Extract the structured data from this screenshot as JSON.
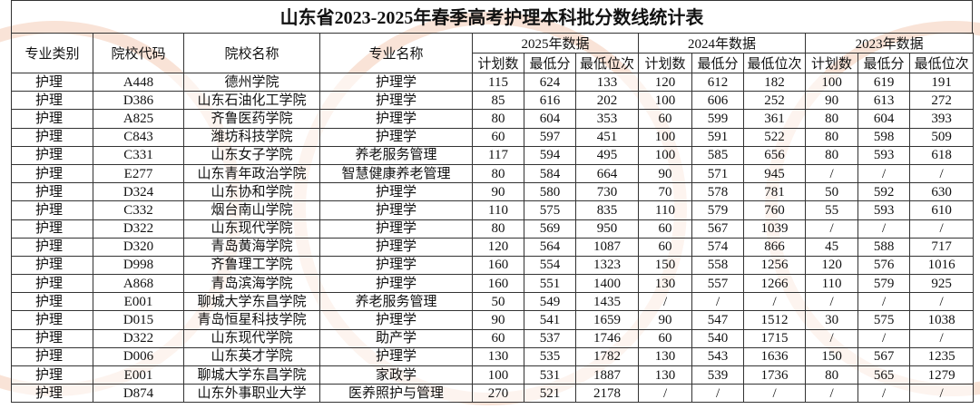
{
  "title": "山东省2023-2025年春季高考护理本科批分数线统计表",
  "table": {
    "columns": [
      "专业类别",
      "院校代码",
      "院校名称",
      "专业名称"
    ],
    "years": [
      {
        "label": "2025年数据",
        "columns": [
          "计划数",
          "最低分",
          "最低位次"
        ]
      },
      {
        "label": "2024年数据",
        "columns": [
          "计划数",
          "最低分",
          "最低位次"
        ]
      },
      {
        "label": "2023年数据",
        "columns": [
          "计划数",
          "最低分",
          "最低位次"
        ]
      }
    ],
    "rows": [
      [
        "护理",
        "A448",
        "德州学院",
        "护理学",
        "115",
        "624",
        "133",
        "120",
        "612",
        "182",
        "100",
        "619",
        "191"
      ],
      [
        "护理",
        "D386",
        "山东石油化工学院",
        "护理学",
        "85",
        "616",
        "202",
        "100",
        "606",
        "252",
        "90",
        "613",
        "272"
      ],
      [
        "护理",
        "A825",
        "齐鲁医药学院",
        "护理学",
        "80",
        "604",
        "353",
        "60",
        "599",
        "361",
        "80",
        "604",
        "393"
      ],
      [
        "护理",
        "C843",
        "潍坊科技学院",
        "护理学",
        "60",
        "597",
        "451",
        "100",
        "591",
        "522",
        "80",
        "598",
        "509"
      ],
      [
        "护理",
        "C331",
        "山东女子学院",
        "养老服务管理",
        "117",
        "594",
        "495",
        "100",
        "585",
        "656",
        "80",
        "593",
        "618"
      ],
      [
        "护理",
        "E277",
        "山东青年政治学院",
        "智慧健康养老管理",
        "80",
        "584",
        "664",
        "90",
        "571",
        "945",
        "/",
        "/",
        "/"
      ],
      [
        "护理",
        "D324",
        "山东协和学院",
        "护理学",
        "90",
        "580",
        "730",
        "70",
        "578",
        "781",
        "50",
        "592",
        "630"
      ],
      [
        "护理",
        "C332",
        "烟台南山学院",
        "护理学",
        "110",
        "575",
        "835",
        "110",
        "579",
        "760",
        "55",
        "593",
        "610"
      ],
      [
        "护理",
        "D322",
        "山东现代学院",
        "护理学",
        "80",
        "569",
        "950",
        "60",
        "567",
        "1039",
        "/",
        "/",
        "/"
      ],
      [
        "护理",
        "D320",
        "青岛黄海学院",
        "护理学",
        "120",
        "564",
        "1087",
        "60",
        "574",
        "866",
        "45",
        "588",
        "717"
      ],
      [
        "护理",
        "D998",
        "齐鲁理工学院",
        "护理学",
        "160",
        "554",
        "1323",
        "150",
        "558",
        "1256",
        "120",
        "576",
        "1016"
      ],
      [
        "护理",
        "A868",
        "青岛滨海学院",
        "护理学",
        "160",
        "551",
        "1400",
        "130",
        "557",
        "1266",
        "110",
        "579",
        "925"
      ],
      [
        "护理",
        "E001",
        "聊城大学东昌学院",
        "养老服务管理",
        "50",
        "549",
        "1435",
        "/",
        "/",
        "/",
        "/",
        "/",
        "/"
      ],
      [
        "护理",
        "D015",
        "青岛恒星科技学院",
        "护理学",
        "90",
        "541",
        "1659",
        "90",
        "547",
        "1512",
        "30",
        "575",
        "1038"
      ],
      [
        "护理",
        "D322",
        "山东现代学院",
        "助产学",
        "60",
        "537",
        "1746",
        "60",
        "540",
        "1715",
        "/",
        "/",
        "/"
      ],
      [
        "护理",
        "D006",
        "山东英才学院",
        "护理学",
        "130",
        "535",
        "1782",
        "130",
        "543",
        "1636",
        "150",
        "567",
        "1235"
      ],
      [
        "护理",
        "E001",
        "聊城大学东昌学院",
        "家政学",
        "100",
        "531",
        "1887",
        "130",
        "539",
        "1736",
        "80",
        "565",
        "1279"
      ],
      [
        "护理",
        "D874",
        "山东外事职业大学",
        "医养照护与管理",
        "270",
        "521",
        "2178",
        "/",
        "/",
        "/",
        "/",
        "/",
        "/"
      ]
    ]
  }
}
